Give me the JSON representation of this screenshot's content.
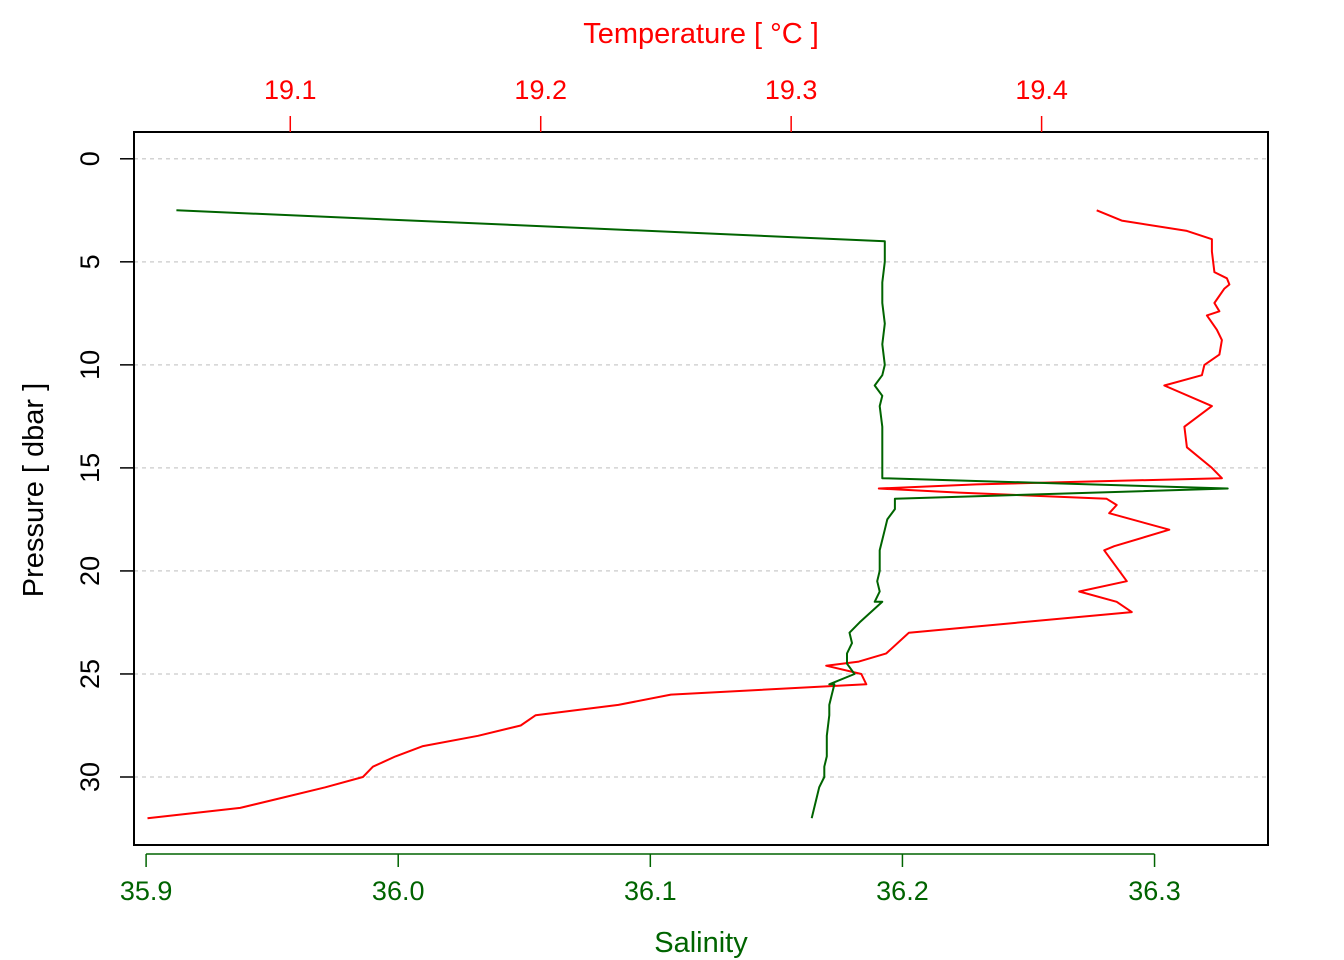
{
  "chart_data": {
    "type": "line",
    "colors": {
      "temperature": "#ff0000",
      "salinity": "#006400",
      "grid": "#d3d3d3",
      "frame": "#000000"
    },
    "x_top_label": "Temperature [ °C ]",
    "x_bottom_label": "Salinity",
    "y_label": "Pressure [ dbar ]",
    "x_top_ticks": [
      "19.1",
      "19.2",
      "19.3",
      "19.4"
    ],
    "x_bottom_ticks": [
      "35.9",
      "36.0",
      "36.1",
      "36.2",
      "36.3"
    ],
    "y_ticks": [
      "0",
      "5",
      "10",
      "15",
      "20",
      "25",
      "30"
    ],
    "temperature_xlim": [
      19.0376,
      19.4904
    ],
    "salinity_xlim": [
      35.8952,
      36.345
    ],
    "pressure_ylim": [
      33.3,
      -1.3
    ],
    "y_reversed": true,
    "grid": "horizontal dashed",
    "series": [
      {
        "name": "temperature",
        "axis": "top",
        "points": [
          [
            19.422,
            2.5
          ],
          [
            19.432,
            3.0
          ],
          [
            19.458,
            3.5
          ],
          [
            19.468,
            3.9
          ],
          [
            19.468,
            4.5
          ],
          [
            19.469,
            5.5
          ],
          [
            19.474,
            5.8
          ],
          [
            19.475,
            6.1
          ],
          [
            19.473,
            6.3
          ],
          [
            19.469,
            7.0
          ],
          [
            19.471,
            7.4
          ],
          [
            19.466,
            7.6
          ],
          [
            19.47,
            8.3
          ],
          [
            19.472,
            8.8
          ],
          [
            19.471,
            9.5
          ],
          [
            19.465,
            10.0
          ],
          [
            19.464,
            10.5
          ],
          [
            19.449,
            11.0
          ],
          [
            19.468,
            12.0
          ],
          [
            19.457,
            13.0
          ],
          [
            19.458,
            14.0
          ],
          [
            19.468,
            15.0
          ],
          [
            19.472,
            15.5
          ],
          [
            19.374,
            15.8
          ],
          [
            19.335,
            16.0
          ],
          [
            19.367,
            16.2
          ],
          [
            19.426,
            16.5
          ],
          [
            19.43,
            16.8
          ],
          [
            19.427,
            17.2
          ],
          [
            19.451,
            18.0
          ],
          [
            19.429,
            18.8
          ],
          [
            19.425,
            19.0
          ],
          [
            19.434,
            20.5
          ],
          [
            19.415,
            21.0
          ],
          [
            19.43,
            21.5
          ],
          [
            19.436,
            22.0
          ],
          [
            19.347,
            23.0
          ],
          [
            19.338,
            24.0
          ],
          [
            19.327,
            24.4
          ],
          [
            19.314,
            24.6
          ],
          [
            19.328,
            25.0
          ],
          [
            19.33,
            25.5
          ],
          [
            19.252,
            26.0
          ],
          [
            19.231,
            26.5
          ],
          [
            19.198,
            27.0
          ],
          [
            19.192,
            27.5
          ],
          [
            19.175,
            28.0
          ],
          [
            19.153,
            28.5
          ],
          [
            19.142,
            29.0
          ],
          [
            19.133,
            29.5
          ],
          [
            19.129,
            30.0
          ],
          [
            19.114,
            30.5
          ],
          [
            19.097,
            31.0
          ],
          [
            19.08,
            31.5
          ],
          [
            19.043,
            32.0
          ]
        ]
      },
      {
        "name": "salinity",
        "axis": "bottom",
        "points": [
          [
            35.912,
            2.5
          ],
          [
            36.193,
            4.0
          ],
          [
            36.193,
            5.0
          ],
          [
            36.192,
            6.0
          ],
          [
            36.192,
            7.0
          ],
          [
            36.193,
            8.0
          ],
          [
            36.192,
            9.0
          ],
          [
            36.193,
            10.0
          ],
          [
            36.192,
            10.5
          ],
          [
            36.189,
            11.0
          ],
          [
            36.192,
            11.5
          ],
          [
            36.191,
            12.0
          ],
          [
            36.192,
            13.0
          ],
          [
            36.192,
            14.0
          ],
          [
            36.192,
            15.0
          ],
          [
            36.192,
            15.5
          ],
          [
            36.329,
            16.0
          ],
          [
            36.197,
            16.5
          ],
          [
            36.197,
            17.0
          ],
          [
            36.194,
            17.5
          ],
          [
            36.193,
            18.0
          ],
          [
            36.191,
            19.0
          ],
          [
            36.191,
            20.0
          ],
          [
            36.19,
            20.5
          ],
          [
            36.191,
            21.0
          ],
          [
            36.189,
            21.5
          ],
          [
            36.192,
            21.5
          ],
          [
            36.183,
            22.5
          ],
          [
            36.179,
            23.0
          ],
          [
            36.18,
            23.5
          ],
          [
            36.178,
            24.0
          ],
          [
            36.178,
            24.5
          ],
          [
            36.181,
            25.0
          ],
          [
            36.171,
            25.5
          ],
          [
            36.173,
            25.5
          ],
          [
            36.172,
            26.0
          ],
          [
            36.171,
            26.5
          ],
          [
            36.171,
            27.0
          ],
          [
            36.17,
            28.0
          ],
          [
            36.17,
            29.0
          ],
          [
            36.169,
            29.5
          ],
          [
            36.169,
            30.0
          ],
          [
            36.167,
            30.5
          ],
          [
            36.166,
            31.0
          ],
          [
            36.165,
            31.5
          ],
          [
            36.164,
            32.0
          ]
        ]
      }
    ]
  }
}
